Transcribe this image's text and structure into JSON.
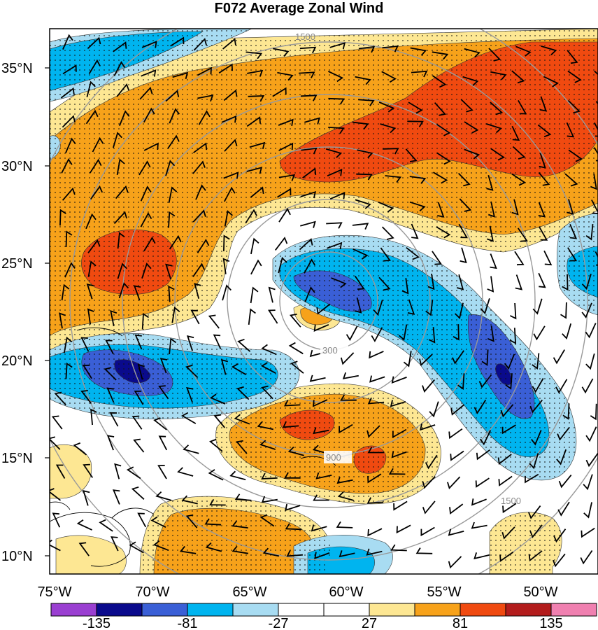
{
  "title": "F072 Average Zonal Wind",
  "axes": {
    "lat_labels": [
      "35°N",
      "30°N",
      "25°N",
      "20°N",
      "15°N",
      "10°N"
    ],
    "lon_labels": [
      "75°W",
      "70°W",
      "65°W",
      "60°W",
      "55°W",
      "50°W"
    ]
  },
  "range_rings": [
    "300",
    "900",
    "1500"
  ],
  "colorbar": {
    "labels": [
      "-135",
      "-81",
      "-27",
      "27",
      "81",
      "135"
    ],
    "colors": [
      "#9a3fd1",
      "#0a0a8c",
      "#3a5fd6",
      "#00b4ef",
      "#a8dcf2",
      "#ffffff",
      "#ffffff",
      "#fde793",
      "#f7a21a",
      "#f04a10",
      "#b31c1c",
      "#f080b0"
    ]
  },
  "palette": {
    "strong_neg": "#0a0a8c",
    "neg_dark": "#3a5fd6",
    "neg_mid": "#00b4ef",
    "neg_light": "#a8dcf2",
    "pos_light": "#fde793",
    "pos_mid": "#f7a21a",
    "pos_dark": "#f04a10"
  }
}
